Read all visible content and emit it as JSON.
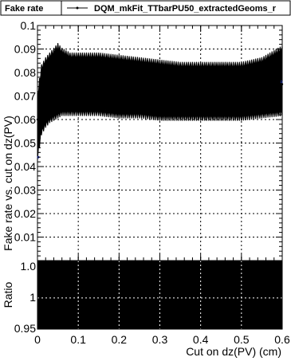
{
  "chart_data": [
    {
      "type": "line",
      "title": "Fake rate",
      "ylabel": "Fake rate vs. cut on dz(PV)",
      "xlim": [
        0,
        0.6
      ],
      "ylim": [
        0,
        0.1
      ],
      "x_ticks": [
        "0",
        "0.1",
        "0.2",
        "0.3",
        "0.4",
        "0.5",
        "0.6"
      ],
      "y_ticks": [
        "0.01",
        "0.02",
        "0.03",
        "0.04",
        "0.05",
        "0.06",
        "0.07",
        "0.08",
        "0.09",
        "0.1"
      ],
      "grid": true,
      "legend": "top",
      "series": [
        {
          "name": "DQM_mkFit_TTbarPU50_extractedGeoms_r",
          "color": "#000000",
          "x": [
            0.0,
            0.01,
            0.02,
            0.03,
            0.04,
            0.05,
            0.06,
            0.07,
            0.08,
            0.1,
            0.15,
            0.2,
            0.25,
            0.3,
            0.35,
            0.4,
            0.45,
            0.5,
            0.55,
            0.6
          ],
          "y": [
            0.06,
            0.07,
            0.072,
            0.074,
            0.075,
            0.076,
            0.076,
            0.076,
            0.076,
            0.076,
            0.075,
            0.074,
            0.073,
            0.072,
            0.072,
            0.072,
            0.072,
            0.072,
            0.073,
            0.075
          ],
          "upper": [
            0.07,
            0.082,
            0.085,
            0.087,
            0.089,
            0.091,
            0.089,
            0.088,
            0.087,
            0.087,
            0.087,
            0.086,
            0.085,
            0.084,
            0.083,
            0.083,
            0.083,
            0.083,
            0.085,
            0.09
          ],
          "lower": [
            0.044,
            0.055,
            0.058,
            0.06,
            0.061,
            0.062,
            0.063,
            0.063,
            0.063,
            0.063,
            0.063,
            0.062,
            0.062,
            0.061,
            0.061,
            0.061,
            0.061,
            0.061,
            0.062,
            0.063
          ]
        }
      ]
    },
    {
      "type": "line",
      "xlabel": "Cut on dz(PV) (cm)",
      "ylabel": "Ratio",
      "xlim": [
        0,
        0.6
      ],
      "ylim": [
        0.95,
        1.06
      ],
      "x_ticks": [
        "0",
        "0.1",
        "0.2",
        "0.3",
        "0.4",
        "0.5",
        "0.6"
      ],
      "y_ticks": [
        "0.95",
        "1",
        "1.0"
      ],
      "grid": true,
      "fill_color": "#000000"
    }
  ]
}
